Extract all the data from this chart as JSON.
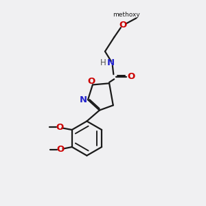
{
  "bg_color": "#f0f0f2",
  "bond_color": "#1a1a1a",
  "o_color": "#cc0000",
  "n_color": "#2222cc",
  "h_color": "#555555",
  "line_width": 1.6,
  "font_size": 8.5,
  "xlim": [
    0,
    10
  ],
  "ylim": [
    0,
    10
  ],
  "figsize": [
    3.0,
    3.0
  ],
  "dpi": 100
}
